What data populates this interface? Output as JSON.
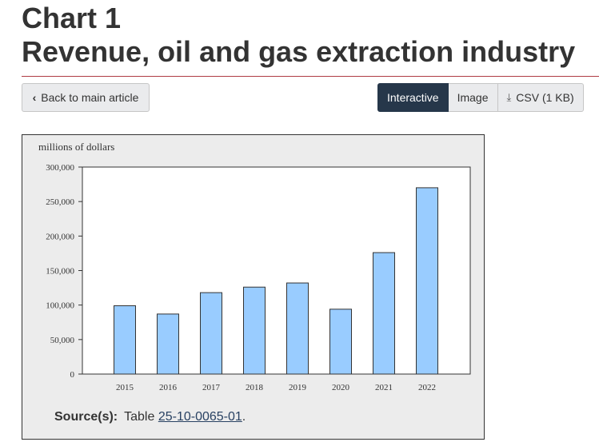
{
  "header": {
    "title_line1": "Chart 1",
    "title_line2": "Revenue, oil and gas extraction industry"
  },
  "toolbar": {
    "back_label": "Back to main article",
    "views": [
      {
        "label": "Interactive",
        "active": true
      },
      {
        "label": "Image",
        "active": false
      },
      {
        "label": "CSV (1 KB)",
        "active": false
      }
    ]
  },
  "chart_data": {
    "type": "bar",
    "ylabel": "millions of dollars",
    "categories": [
      "2015",
      "2016",
      "2017",
      "2018",
      "2019",
      "2020",
      "2021",
      "2022"
    ],
    "values": [
      99000,
      87000,
      118000,
      126000,
      132000,
      94000,
      176000,
      270000
    ],
    "ylim": [
      0,
      300000
    ],
    "yticks": [
      0,
      50000,
      100000,
      150000,
      200000,
      250000,
      300000
    ],
    "ytick_labels": [
      "0",
      "50,000",
      "100,000",
      "150,000",
      "200,000",
      "250,000",
      "300,000"
    ],
    "grid": false,
    "bar_color": "#99ccff"
  },
  "footer": {
    "source_label": "Source(s):",
    "source_prefix": "Table",
    "source_link": "25-10-0065-01",
    "source_suffix": "."
  },
  "colors": {
    "accent_rule": "#af3c43",
    "active_button": "#26374a",
    "panel_bg": "#ececec"
  }
}
